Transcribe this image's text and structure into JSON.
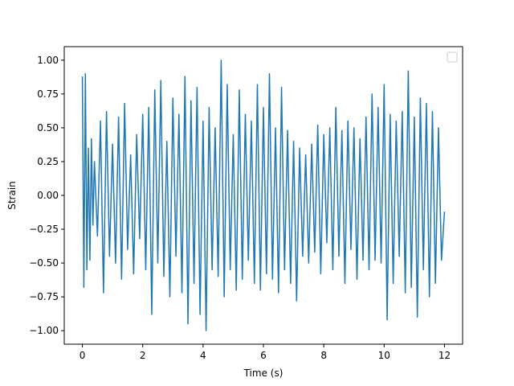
{
  "chart_data": {
    "type": "line",
    "title": "",
    "xlabel": "Time (s)",
    "ylabel": "Strain",
    "xlim": [
      -0.6,
      12.6
    ],
    "ylim": [
      -1.1,
      1.1
    ],
    "xticks": [
      0,
      2,
      4,
      6,
      8,
      10,
      12
    ],
    "xtick_labels": [
      "0",
      "2",
      "4",
      "6",
      "8",
      "10",
      "12"
    ],
    "yticks": [
      -1.0,
      -0.75,
      -0.5,
      -0.25,
      0.0,
      0.25,
      0.5,
      0.75,
      1.0
    ],
    "ytick_labels": [
      "−1.00",
      "−0.75",
      "−0.50",
      "−0.25",
      "0.00",
      "0.25",
      "0.50",
      "0.75",
      "1.00"
    ],
    "grid": false,
    "legend": {
      "placement": "top-right",
      "entries": []
    },
    "series": [
      {
        "color": "#1f77b4",
        "x": [
          0.0,
          0.05,
          0.1,
          0.15,
          0.2,
          0.25,
          0.3,
          0.35,
          0.4,
          0.5,
          0.6,
          0.7,
          0.8,
          0.9,
          1.0,
          1.1,
          1.2,
          1.3,
          1.4,
          1.5,
          1.6,
          1.7,
          1.8,
          1.9,
          2.0,
          2.1,
          2.2,
          2.3,
          2.4,
          2.5,
          2.6,
          2.7,
          2.8,
          2.9,
          3.0,
          3.1,
          3.2,
          3.3,
          3.4,
          3.5,
          3.6,
          3.7,
          3.8,
          3.9,
          4.0,
          4.1,
          4.2,
          4.3,
          4.4,
          4.5,
          4.6,
          4.7,
          4.8,
          4.9,
          5.0,
          5.1,
          5.2,
          5.3,
          5.4,
          5.5,
          5.6,
          5.7,
          5.8,
          5.9,
          6.0,
          6.1,
          6.2,
          6.3,
          6.4,
          6.5,
          6.6,
          6.7,
          6.8,
          6.9,
          7.0,
          7.1,
          7.2,
          7.3,
          7.4,
          7.5,
          7.6,
          7.7,
          7.8,
          7.9,
          8.0,
          8.1,
          8.2,
          8.3,
          8.4,
          8.5,
          8.6,
          8.7,
          8.8,
          8.9,
          9.0,
          9.1,
          9.2,
          9.3,
          9.4,
          9.5,
          9.6,
          9.7,
          9.8,
          9.9,
          10.0,
          10.1,
          10.2,
          10.3,
          10.4,
          10.5,
          10.6,
          10.7,
          10.8,
          10.9,
          11.0,
          11.1,
          11.2,
          11.3,
          11.4,
          11.5,
          11.6,
          11.7,
          11.8,
          11.9,
          12.0
        ],
        "y": [
          0.88,
          -0.68,
          0.9,
          -0.55,
          0.35,
          -0.48,
          0.42,
          -0.22,
          0.25,
          -0.3,
          0.55,
          -0.72,
          0.62,
          -0.45,
          0.38,
          -0.5,
          0.58,
          -0.62,
          0.68,
          -0.4,
          0.3,
          -0.58,
          0.45,
          -0.32,
          0.6,
          -0.55,
          0.65,
          -0.88,
          0.78,
          -0.5,
          0.85,
          -0.6,
          0.4,
          -0.75,
          0.72,
          -0.45,
          0.6,
          -0.72,
          0.88,
          -0.95,
          0.7,
          -0.65,
          0.8,
          -0.88,
          0.55,
          -1.0,
          0.65,
          -0.55,
          0.5,
          -0.6,
          1.0,
          -0.75,
          0.82,
          -0.55,
          0.45,
          -0.7,
          0.78,
          -0.62,
          0.6,
          -0.48,
          0.55,
          -0.65,
          0.82,
          -0.7,
          0.65,
          -0.58,
          0.9,
          -0.62,
          0.5,
          -0.72,
          0.8,
          -0.55,
          0.48,
          -0.65,
          0.4,
          -0.78,
          0.35,
          -0.45,
          0.3,
          -0.5,
          0.38,
          -0.42,
          0.52,
          -0.58,
          0.45,
          -0.35,
          0.5,
          -0.55,
          0.65,
          -0.45,
          0.48,
          -0.65,
          0.55,
          -0.4,
          0.5,
          -0.62,
          0.42,
          -0.48,
          0.58,
          -0.55,
          0.75,
          -0.48,
          0.65,
          -0.5,
          0.82,
          -0.92,
          0.6,
          -0.65,
          0.55,
          -0.45,
          0.62,
          -0.72,
          0.92,
          -0.68,
          0.58,
          -0.9,
          0.72,
          -0.55,
          0.68,
          -0.75,
          0.62,
          -0.65,
          0.5,
          -0.48,
          -0.12
        ]
      }
    ]
  }
}
